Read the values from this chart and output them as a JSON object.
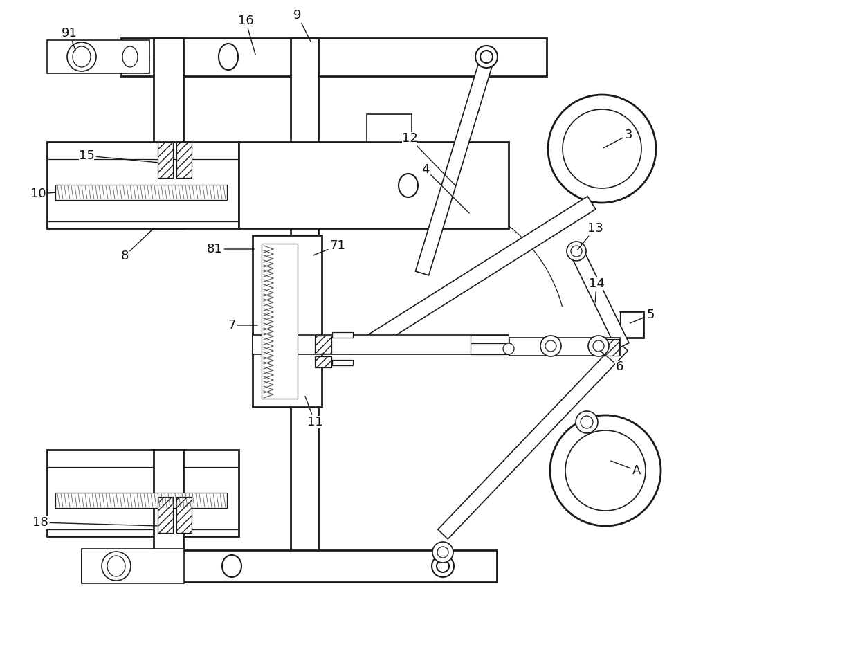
{
  "bg_color": "#ffffff",
  "line_color": "#1a1a1a",
  "lw": 1.5,
  "lw_thin": 0.9,
  "lw_thick": 2.0,
  "lw_med": 1.2,
  "fig_w": 12.4,
  "fig_h": 9.61,
  "dpi": 100
}
